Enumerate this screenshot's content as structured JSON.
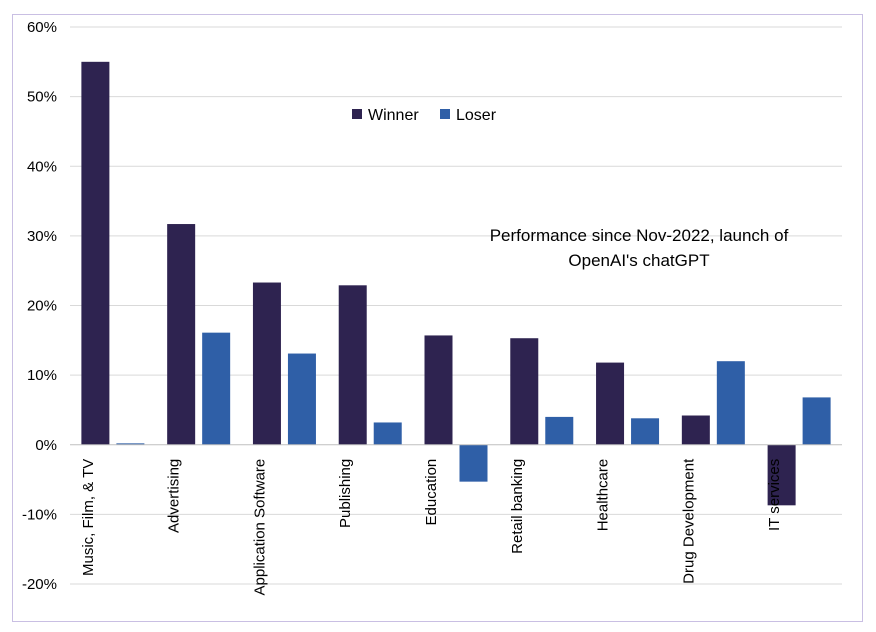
{
  "chart_data": {
    "type": "bar",
    "categories": [
      "Music, Film, & TV",
      "Advertising",
      "Application Software",
      "Publishing",
      "Education",
      "Retail banking",
      "Healthcare",
      "Drug Development",
      "IT services"
    ],
    "series": [
      {
        "name": "Winner",
        "color": "#2e2350",
        "values": [
          55,
          31.7,
          23.3,
          22.9,
          15.7,
          15.3,
          11.8,
          4.2,
          -8.7
        ]
      },
      {
        "name": "Loser",
        "color": "#2f5fa7",
        "values": [
          0.2,
          16.1,
          13.1,
          3.2,
          -5.3,
          4.0,
          3.8,
          12.0,
          6.8
        ]
      }
    ],
    "ylim": [
      -20,
      60
    ],
    "yticks": [
      -20,
      -10,
      0,
      10,
      20,
      30,
      40,
      50,
      60
    ],
    "ytick_labels": [
      "-20%",
      "-10%",
      "0%",
      "10%",
      "20%",
      "30%",
      "40%",
      "50%",
      "60%"
    ],
    "grid": true,
    "legend_position": "top-center",
    "annotation": [
      "Performance since Nov-2022, launch of",
      "OpenAI's chatGPT"
    ]
  }
}
